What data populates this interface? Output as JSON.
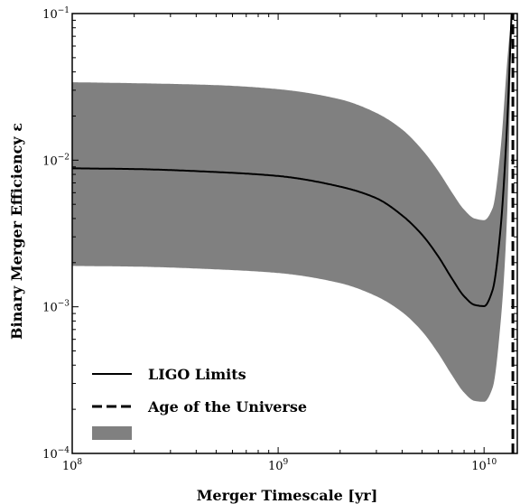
{
  "chart_data": {
    "type": "line",
    "title": "",
    "xlabel": "Merger Timescale [yr]",
    "ylabel": "Binary Merger Efficiency ε",
    "x_scale": "log",
    "y_scale": "log",
    "xlim": [
      100000000.0,
      14500000000.0
    ],
    "ylim": [
      0.0001,
      0.1
    ],
    "grid": false,
    "legend_placement": "lower-left",
    "x_ticks": [
      {
        "value": 100000000.0,
        "base": "10",
        "exp": "8"
      },
      {
        "value": 1000000000.0,
        "base": "10",
        "exp": "9"
      },
      {
        "value": 10000000000.0,
        "base": "10",
        "exp": "10"
      }
    ],
    "y_ticks": [
      {
        "value": 0.0001,
        "base": "10",
        "exp": "−4"
      },
      {
        "value": 0.001,
        "base": "10",
        "exp": "−3"
      },
      {
        "value": 0.01,
        "base": "10",
        "exp": "−2"
      },
      {
        "value": 0.1,
        "base": "10",
        "exp": "−1"
      }
    ],
    "series": [
      {
        "name": "LIGO Limits",
        "style": "solid",
        "color": "#000000",
        "x": [
          100000000.0,
          200000000.0,
          500000000.0,
          1000000000.0,
          2000000000.0,
          3000000000.0,
          4000000000.0,
          5000000000.0,
          6000000000.0,
          7000000000.0,
          8000000000.0,
          9000000000.0,
          10000000000.0,
          11000000000.0,
          12000000000.0,
          13000000000.0,
          13600000000.0
        ],
        "y": [
          0.0088,
          0.0087,
          0.0083,
          0.0078,
          0.0066,
          0.0055,
          0.0042,
          0.0031,
          0.0022,
          0.00155,
          0.00118,
          0.00103,
          0.00101,
          0.0013,
          0.0033,
          0.02,
          0.1
        ]
      },
      {
        "name": "Age of the Universe",
        "style": "dashed",
        "color": "#000000",
        "x": [
          13800000000.0,
          13800000000.0
        ],
        "y": [
          0.0001,
          0.1
        ]
      },
      {
        "name": "",
        "style": "band",
        "color": "#808080",
        "x": [
          100000000.0,
          200000000.0,
          500000000.0,
          1000000000.0,
          2000000000.0,
          3000000000.0,
          4000000000.0,
          5000000000.0,
          6000000000.0,
          7000000000.0,
          8000000000.0,
          9000000000.0,
          10000000000.0,
          11000000000.0,
          12000000000.0,
          13000000000.0,
          13600000000.0
        ],
        "upper": [
          0.034,
          0.0335,
          0.0325,
          0.0305,
          0.026,
          0.021,
          0.0162,
          0.0118,
          0.0084,
          0.006,
          0.0046,
          0.004,
          0.0039,
          0.0047,
          0.0115,
          0.05,
          0.1
        ],
        "lower": [
          0.0019,
          0.00188,
          0.0018,
          0.0017,
          0.00145,
          0.00118,
          0.00092,
          0.00068,
          0.00048,
          0.00034,
          0.00026,
          0.000228,
          0.000225,
          0.00028,
          0.00075,
          0.005,
          0.1
        ]
      }
    ],
    "colors": {
      "band": "#808080",
      "line": "#000000",
      "background": "#ffffff"
    }
  }
}
